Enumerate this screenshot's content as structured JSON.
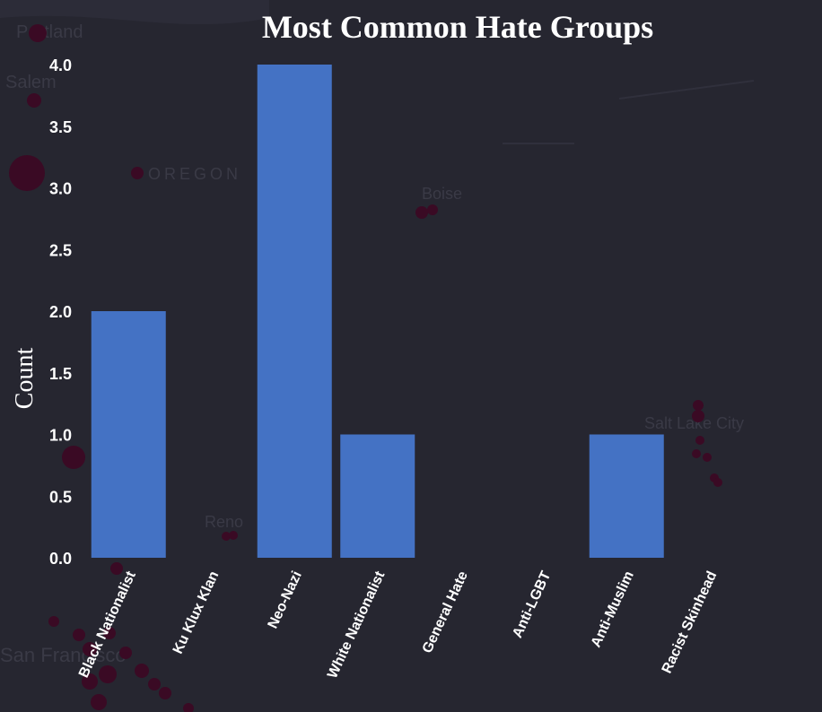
{
  "background_map": {
    "labels": [
      "Portland",
      "Salem",
      "OREGON",
      "Boise",
      "Salt Lake City",
      "San Francisco",
      "Reno"
    ]
  },
  "colors": {
    "background": "#262630",
    "bar": "#4472c4",
    "text": "#ffffff",
    "map_dot": "#3a0a24"
  },
  "chart_data": {
    "type": "bar",
    "title": "Most Common Hate Groups",
    "xlabel": "",
    "ylabel": "Count",
    "categories": [
      "Black Nationalist",
      "Ku Klux Klan",
      "Neo-Nazi",
      "White Nationalist",
      "General Hate",
      "Anti-LGBT",
      "Anti-Muslim",
      "Racist Skinhead"
    ],
    "values": [
      2,
      0,
      4,
      1,
      0,
      0,
      1,
      0
    ],
    "ylim": [
      0,
      4
    ],
    "yticks": [
      "0.0",
      "0.5",
      "1.0",
      "1.5",
      "2.0",
      "2.5",
      "3.0",
      "3.5",
      "4.0"
    ],
    "grid": false,
    "legend": "none"
  }
}
